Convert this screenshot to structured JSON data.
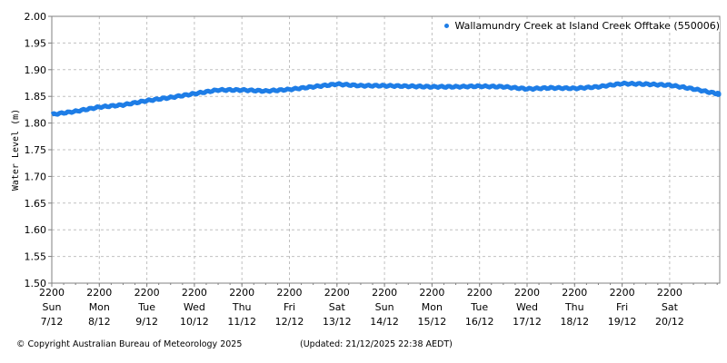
{
  "legend": {
    "label": "Wallamundry Creek at Island Creek Offtake (550006)",
    "color": "#1e7de6"
  },
  "footer": {
    "copyright": "© Copyright Australian Bureau of Meteorology 2025",
    "updated": "(Updated: 21/12/2025 22:38 AEDT)"
  },
  "chart_data": {
    "type": "line",
    "title": "",
    "xlabel": "",
    "ylabel": "Water Level (m)",
    "ylim": [
      1.5,
      2.0
    ],
    "yticks": [
      "2.00",
      "1.95",
      "1.90",
      "1.85",
      "1.80",
      "1.75",
      "1.70",
      "1.65",
      "1.60",
      "1.55",
      "1.50"
    ],
    "grid": true,
    "legend_position": "top-right",
    "series_color": "#1e7de6",
    "xticks": [
      {
        "time": "2200",
        "day": "Sun",
        "date": "7/12"
      },
      {
        "time": "2200",
        "day": "Mon",
        "date": "8/12"
      },
      {
        "time": "2200",
        "day": "Tue",
        "date": "9/12"
      },
      {
        "time": "2200",
        "day": "Wed",
        "date": "10/12"
      },
      {
        "time": "2200",
        "day": "Thu",
        "date": "11/12"
      },
      {
        "time": "2200",
        "day": "Fri",
        "date": "12/12"
      },
      {
        "time": "2200",
        "day": "Sat",
        "date": "13/12"
      },
      {
        "time": "2200",
        "day": "Sun",
        "date": "14/12"
      },
      {
        "time": "2200",
        "day": "Mon",
        "date": "15/12"
      },
      {
        "time": "2200",
        "day": "Tue",
        "date": "16/12"
      },
      {
        "time": "2200",
        "day": "Wed",
        "date": "17/12"
      },
      {
        "time": "2200",
        "day": "Thu",
        "date": "18/12"
      },
      {
        "time": "2200",
        "day": "Fri",
        "date": "19/12"
      },
      {
        "time": "2200",
        "day": "Sat",
        "date": "20/12"
      }
    ],
    "series": [
      {
        "name": "Wallamundry Creek at Island Creek Offtake (550006)",
        "x": [
          0,
          0.5,
          1,
          1.5,
          2,
          2.5,
          3,
          3.5,
          4,
          4.5,
          5,
          5.5,
          6,
          6.5,
          7,
          7.5,
          8,
          8.5,
          9,
          9.5,
          10,
          10.5,
          11,
          11.5,
          12,
          12.5,
          13,
          13.5,
          14,
          14.07
        ],
        "values": [
          1.816,
          1.822,
          1.83,
          1.834,
          1.842,
          1.848,
          1.855,
          1.862,
          1.862,
          1.86,
          1.863,
          1.868,
          1.873,
          1.87,
          1.87,
          1.869,
          1.868,
          1.868,
          1.869,
          1.868,
          1.864,
          1.866,
          1.865,
          1.868,
          1.874,
          1.873,
          1.871,
          1.864,
          1.855,
          1.854
        ]
      }
    ]
  }
}
